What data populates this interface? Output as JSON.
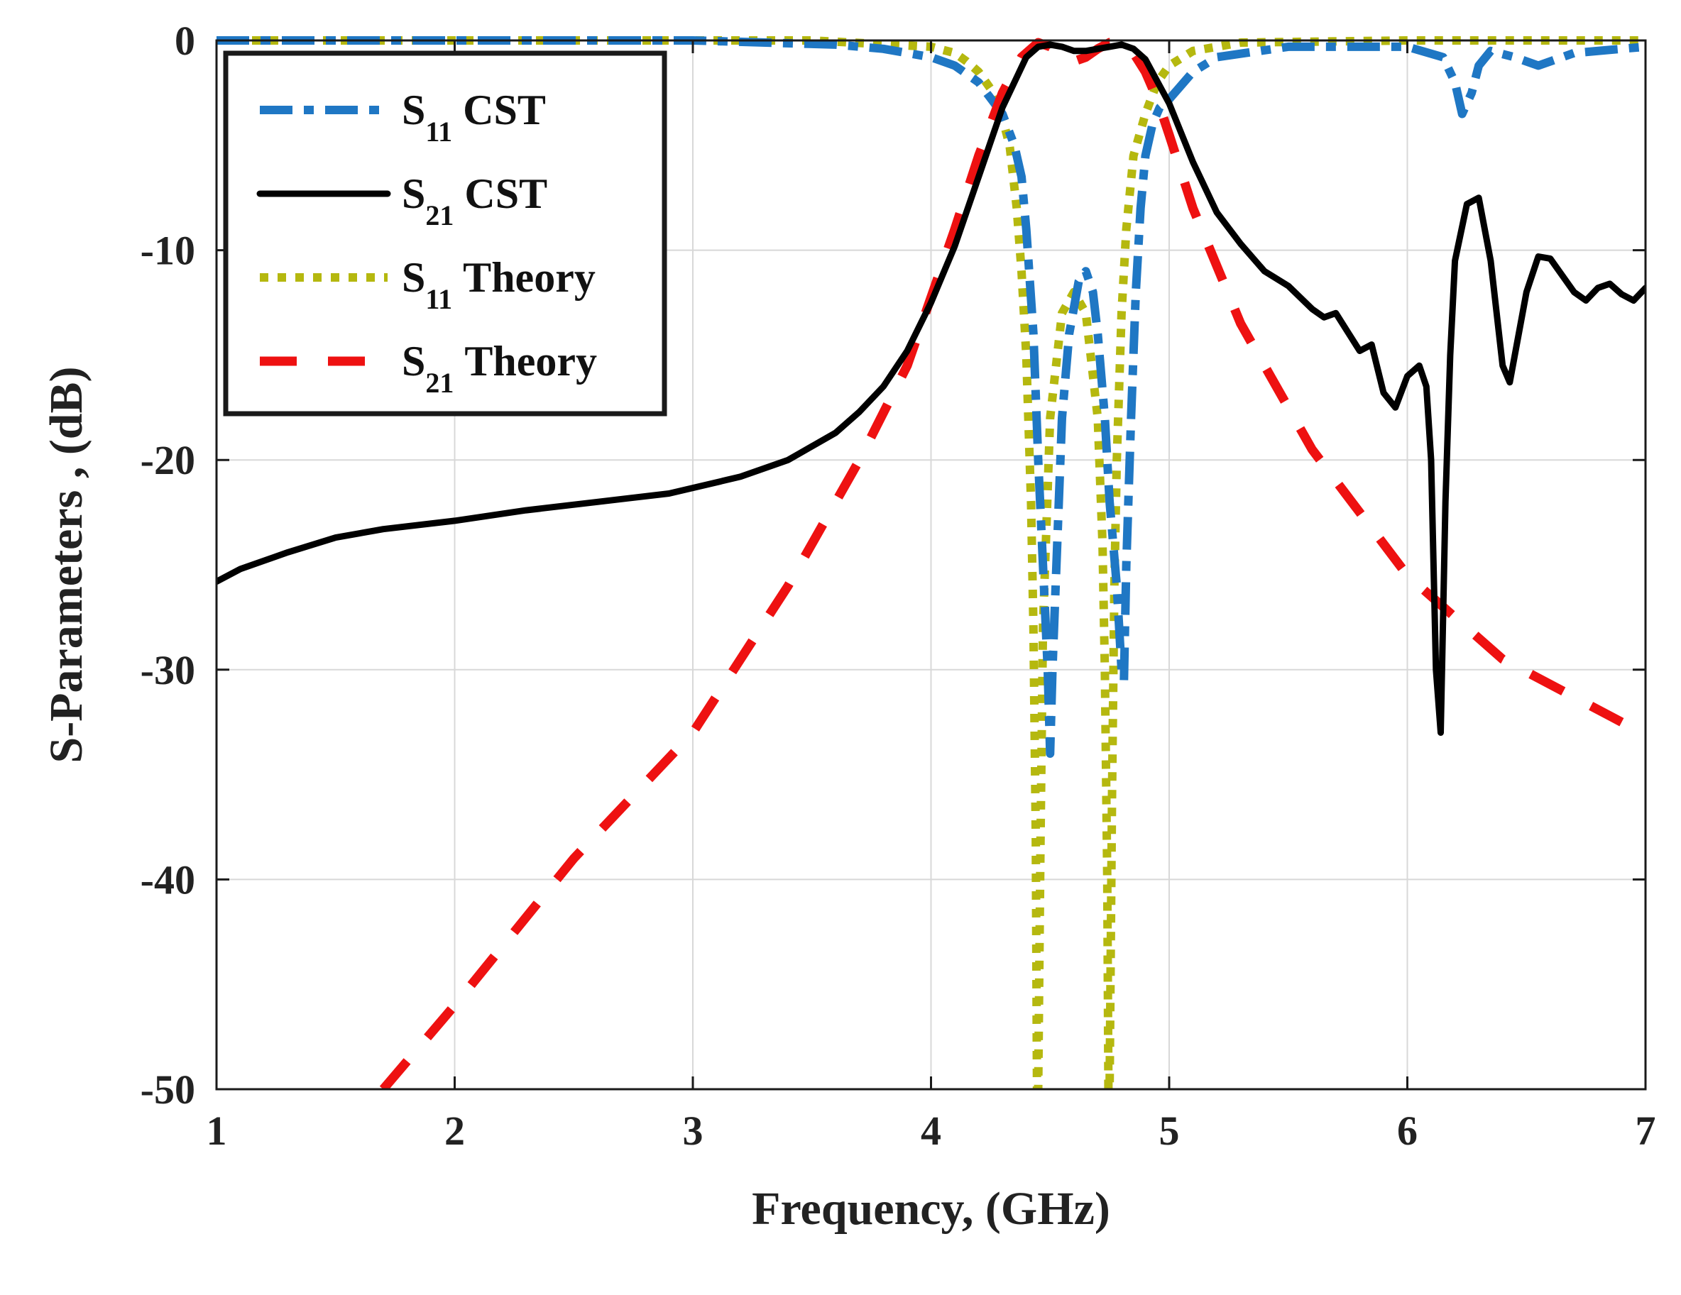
{
  "chart_data": {
    "type": "line",
    "title": "",
    "xlabel": "Frequency, (GHz)",
    "ylabel": "S-Parameters , (dB)",
    "xlim": [
      1,
      7
    ],
    "ylim": [
      -50,
      0
    ],
    "xticks": [
      1,
      2,
      3,
      4,
      5,
      6,
      7
    ],
    "yticks": [
      0,
      -10,
      -20,
      -30,
      -40,
      -50
    ],
    "xtick_labels": [
      "1",
      "2",
      "3",
      "4",
      "5",
      "6",
      "7"
    ],
    "ytick_labels": [
      "0",
      "-10",
      "-20",
      "-30",
      "-40",
      "-50"
    ],
    "grid": true,
    "legend_position": "top-left",
    "series": [
      {
        "name": "S11 CST",
        "legend_main": "S",
        "legend_sub": "11",
        "legend_rest": " CST",
        "color": "#1f77c4",
        "style": "dashdot",
        "x": [
          1.0,
          3.0,
          3.6,
          3.8,
          4.0,
          4.1,
          4.2,
          4.3,
          4.35,
          4.38,
          4.4,
          4.43,
          4.45,
          4.47,
          4.49,
          4.5,
          4.51,
          4.53,
          4.55,
          4.58,
          4.62,
          4.65,
          4.68,
          4.7,
          4.73,
          4.75,
          4.78,
          4.8,
          4.81,
          4.82,
          4.84,
          4.86,
          4.88,
          4.9,
          4.93,
          4.96,
          5.0,
          5.1,
          5.2,
          5.5,
          6.0,
          6.15,
          6.2,
          6.23,
          6.27,
          6.3,
          6.35,
          6.45,
          6.55,
          6.7,
          7.0
        ],
        "y": [
          0,
          0,
          -0.2,
          -0.4,
          -0.8,
          -1.2,
          -2.0,
          -3.5,
          -5.0,
          -6.5,
          -9.0,
          -14,
          -20,
          -25,
          -30,
          -34,
          -30,
          -24,
          -18,
          -14,
          -11.5,
          -11,
          -12,
          -14,
          -18,
          -22,
          -26,
          -30,
          -30.5,
          -25,
          -18,
          -12,
          -8,
          -5.5,
          -4,
          -3.2,
          -2.8,
          -1.5,
          -0.8,
          -0.3,
          -0.3,
          -0.8,
          -2.0,
          -3.5,
          -2.5,
          -1.2,
          -0.5,
          -0.8,
          -1.2,
          -0.6,
          -0.3
        ]
      },
      {
        "name": "S21 CST",
        "legend_main": "S",
        "legend_sub": "21",
        "legend_rest": " CST",
        "color": "#000000",
        "style": "solid",
        "x": [
          1.0,
          1.1,
          1.3,
          1.5,
          1.7,
          2.0,
          2.3,
          2.6,
          2.9,
          3.2,
          3.4,
          3.6,
          3.7,
          3.8,
          3.9,
          4.0,
          4.1,
          4.2,
          4.3,
          4.4,
          4.45,
          4.5,
          4.55,
          4.6,
          4.65,
          4.7,
          4.75,
          4.8,
          4.85,
          4.9,
          5.0,
          5.1,
          5.2,
          5.3,
          5.4,
          5.5,
          5.6,
          5.65,
          5.7,
          5.8,
          5.85,
          5.9,
          5.95,
          6.0,
          6.05,
          6.08,
          6.1,
          6.12,
          6.14,
          6.16,
          6.18,
          6.2,
          6.25,
          6.3,
          6.35,
          6.4,
          6.43,
          6.5,
          6.55,
          6.6,
          6.7,
          6.75,
          6.8,
          6.85,
          6.9,
          6.95,
          7.0
        ],
        "y": [
          -25.8,
          -25.2,
          -24.4,
          -23.7,
          -23.3,
          -22.9,
          -22.4,
          -22.0,
          -21.6,
          -20.8,
          -20.0,
          -18.7,
          -17.7,
          -16.5,
          -14.8,
          -12.5,
          -9.8,
          -6.5,
          -3.2,
          -0.8,
          -0.3,
          -0.2,
          -0.3,
          -0.5,
          -0.5,
          -0.4,
          -0.3,
          -0.2,
          -0.4,
          -0.9,
          -3.0,
          -5.8,
          -8.2,
          -9.7,
          -11.0,
          -11.7,
          -12.8,
          -13.2,
          -13.0,
          -14.8,
          -14.5,
          -16.8,
          -17.5,
          -16.0,
          -15.5,
          -16.5,
          -20.0,
          -30.0,
          -33.0,
          -22.0,
          -15.0,
          -10.5,
          -7.8,
          -7.5,
          -10.5,
          -15.5,
          -16.3,
          -12.0,
          -10.3,
          -10.4,
          -12.0,
          -12.4,
          -11.8,
          -11.6,
          -12.1,
          -12.4,
          -11.8
        ]
      },
      {
        "name": "S11 Theory",
        "legend_main": "S",
        "legend_sub": "11",
        "legend_rest": " Theory",
        "color": "#b5b80f",
        "style": "dotted",
        "x": [
          1.0,
          3.5,
          4.0,
          4.1,
          4.15,
          4.2,
          4.25,
          4.3,
          4.33,
          4.36,
          4.38,
          4.4,
          4.42,
          4.43,
          4.44,
          4.445,
          4.45,
          4.46,
          4.47,
          4.5,
          4.55,
          4.6,
          4.65,
          4.7,
          4.72,
          4.73,
          4.74,
          4.745,
          4.75,
          4.76,
          4.77,
          4.78,
          4.8,
          4.82,
          4.85,
          4.9,
          4.95,
          5.0,
          5.1,
          5.3,
          6.0,
          7.0
        ],
        "y": [
          0,
          0,
          -0.3,
          -0.6,
          -1.0,
          -1.5,
          -2.3,
          -3.7,
          -5.0,
          -8.0,
          -11.0,
          -15.0,
          -22.0,
          -28.0,
          -38.0,
          -50.0,
          -50.0,
          -38.0,
          -28.0,
          -18.0,
          -13.0,
          -12.0,
          -13.0,
          -18.0,
          -24.0,
          -30.0,
          -40.0,
          -50.0,
          -50.0,
          -36.0,
          -26.0,
          -20.0,
          -13.0,
          -9.0,
          -5.5,
          -3.5,
          -2.0,
          -1.2,
          -0.5,
          -0.1,
          0,
          0
        ]
      },
      {
        "name": "S21 Theory",
        "legend_main": "S",
        "legend_sub": "21",
        "legend_rest": " Theory",
        "color": "#ee1111",
        "style": "dashed",
        "x": [
          1.7,
          2.0,
          2.5,
          3.0,
          3.4,
          3.7,
          3.9,
          4.1,
          4.2,
          4.3,
          4.38,
          4.45,
          4.5,
          4.55,
          4.6,
          4.65,
          4.7,
          4.75,
          4.8,
          4.85,
          4.9,
          4.95,
          5.0,
          5.1,
          5.3,
          5.6,
          6.0,
          6.4,
          6.9
        ],
        "y": [
          -50.0,
          -46.0,
          -39.0,
          -33.0,
          -26.0,
          -20.0,
          -15.5,
          -9.0,
          -5.5,
          -2.5,
          -0.8,
          -0.1,
          -0.3,
          -0.8,
          -1.0,
          -0.8,
          -0.4,
          -0.1,
          -0.1,
          -0.6,
          -1.5,
          -2.8,
          -4.5,
          -8.0,
          -13.5,
          -19.5,
          -25.5,
          -29.5,
          -32.5
        ]
      }
    ]
  }
}
